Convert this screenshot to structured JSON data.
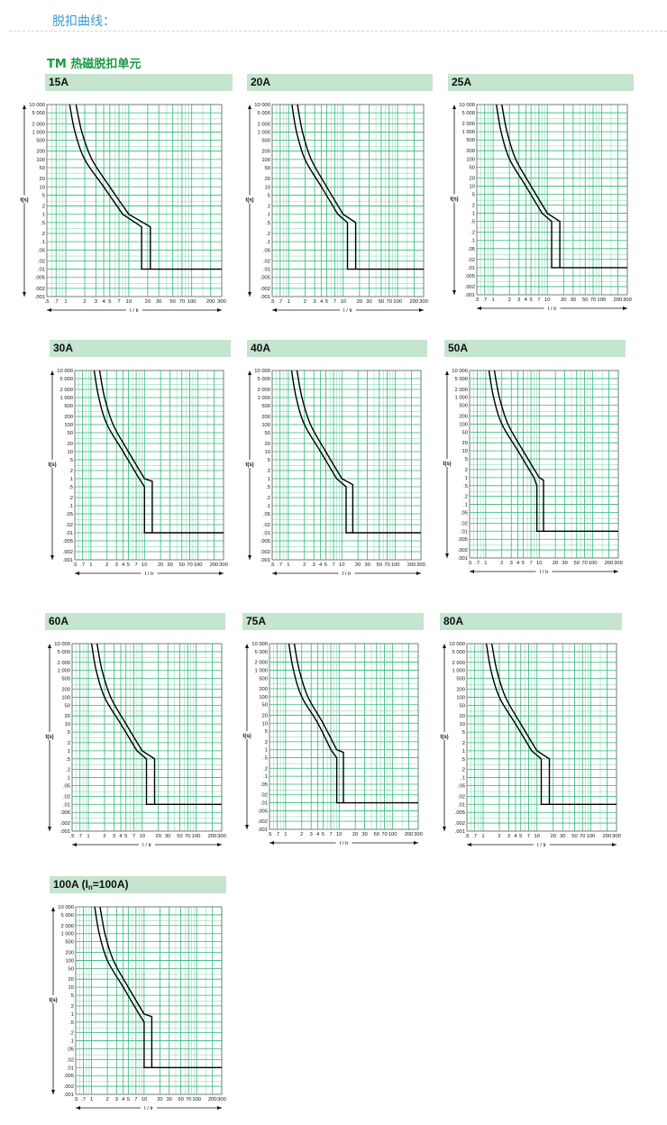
{
  "page": {
    "title": "脱扣曲线：",
    "section_title": "TM 热磁脱扣单元"
  },
  "chart_common": {
    "type": "line",
    "ylabel": "t(s)",
    "xlabel": "I / Ir",
    "x_tick_labels": [
      ".5",
      ".7",
      "1",
      "2",
      "3",
      "4",
      "5",
      "7",
      "10",
      "20",
      "30",
      "50",
      "70",
      "100",
      "200",
      "300"
    ],
    "y_tick_labels": [
      "10 000",
      "5 000",
      "2 000",
      "1 000",
      "500",
      "200",
      "100",
      "50",
      "20",
      "10",
      "5",
      "2",
      "1",
      ".5",
      ".2",
      ".1",
      ".05",
      ".02",
      ".01",
      ".005",
      ".002",
      ".001"
    ],
    "xlim": [
      0.5,
      300
    ],
    "ylim": [
      0.001,
      10000
    ],
    "x_scale": "log",
    "y_scale": "log",
    "grid": true,
    "grid_color": "#2fb87a",
    "curve_color": "#000000",
    "header_color": "#c5e5ce"
  },
  "chart_data": [
    {
      "title": "15A",
      "series": [
        {
          "values": [
            [
              1.15,
              10000
            ],
            [
              1.4,
              1000
            ],
            [
              2,
              100
            ],
            [
              4,
              10
            ],
            [
              8,
              1
            ],
            [
              16,
              0.35
            ],
            [
              16,
              0.01
            ],
            [
              300,
              0.01
            ]
          ]
        },
        {
          "values": [
            [
              1.45,
              10000
            ],
            [
              1.8,
              1000
            ],
            [
              2.6,
              100
            ],
            [
              5,
              10
            ],
            [
              10,
              1
            ],
            [
              22,
              0.35
            ],
            [
              22,
              0.01
            ]
          ]
        }
      ]
    },
    {
      "title": "20A",
      "series": [
        {
          "values": [
            [
              1.15,
              10000
            ],
            [
              1.4,
              1000
            ],
            [
              2,
              100
            ],
            [
              4,
              10
            ],
            [
              8,
              1
            ],
            [
              12,
              0.5
            ],
            [
              12,
              0.01
            ],
            [
              300,
              0.01
            ]
          ]
        },
        {
          "values": [
            [
              1.45,
              10000
            ],
            [
              1.8,
              1000
            ],
            [
              2.6,
              100
            ],
            [
              5,
              10
            ],
            [
              10,
              1
            ],
            [
              17,
              0.5
            ],
            [
              17,
              0.01
            ]
          ]
        }
      ]
    },
    {
      "title": "25A",
      "series": [
        {
          "values": [
            [
              1.15,
              10000
            ],
            [
              1.4,
              1000
            ],
            [
              2,
              100
            ],
            [
              4,
              10
            ],
            [
              8,
              1
            ],
            [
              12,
              0.5
            ],
            [
              12,
              0.01
            ],
            [
              300,
              0.01
            ]
          ]
        },
        {
          "values": [
            [
              1.45,
              10000
            ],
            [
              1.8,
              1000
            ],
            [
              2.6,
              100
            ],
            [
              5,
              10
            ],
            [
              10,
              1
            ],
            [
              17,
              0.5
            ],
            [
              17,
              0.01
            ]
          ]
        }
      ]
    },
    {
      "title": "30A",
      "series": [
        {
          "values": [
            [
              1.15,
              10000
            ],
            [
              1.4,
              1000
            ],
            [
              2,
              100
            ],
            [
              4,
              10
            ],
            [
              8,
              1
            ],
            [
              10,
              0.5
            ],
            [
              10,
              0.01
            ],
            [
              300,
              0.01
            ]
          ]
        },
        {
          "values": [
            [
              1.45,
              10000
            ],
            [
              1.8,
              1000
            ],
            [
              2.6,
              100
            ],
            [
              5,
              10
            ],
            [
              10,
              1
            ],
            [
              14,
              0.8
            ],
            [
              14,
              0.01
            ]
          ]
        }
      ]
    },
    {
      "title": "40A",
      "series": [
        {
          "values": [
            [
              1.15,
              10000
            ],
            [
              1.4,
              1000
            ],
            [
              2,
              100
            ],
            [
              4,
              10
            ],
            [
              8,
              1
            ],
            [
              12,
              0.5
            ],
            [
              12,
              0.01
            ],
            [
              300,
              0.01
            ]
          ]
        },
        {
          "values": [
            [
              1.45,
              10000
            ],
            [
              1.8,
              1000
            ],
            [
              2.6,
              100
            ],
            [
              5,
              10
            ],
            [
              10,
              1
            ],
            [
              16,
              0.6
            ],
            [
              16,
              0.01
            ]
          ]
        }
      ]
    },
    {
      "title": "50A",
      "series": [
        {
          "values": [
            [
              1.15,
              10000
            ],
            [
              1.4,
              1000
            ],
            [
              2,
              100
            ],
            [
              4,
              10
            ],
            [
              8,
              1
            ],
            [
              9,
              0.5
            ],
            [
              9,
              0.01
            ],
            [
              300,
              0.01
            ]
          ]
        },
        {
          "values": [
            [
              1.45,
              10000
            ],
            [
              1.8,
              1000
            ],
            [
              2.6,
              100
            ],
            [
              5,
              10
            ],
            [
              10,
              1
            ],
            [
              12,
              0.8
            ],
            [
              12,
              0.01
            ]
          ]
        }
      ]
    },
    {
      "title": "60A",
      "series": [
        {
          "values": [
            [
              1.15,
              10000
            ],
            [
              1.4,
              1000
            ],
            [
              2,
              100
            ],
            [
              4,
              10
            ],
            [
              8,
              1
            ],
            [
              12,
              0.5
            ],
            [
              12,
              0.01
            ],
            [
              300,
              0.01
            ]
          ]
        },
        {
          "values": [
            [
              1.45,
              10000
            ],
            [
              1.8,
              1000
            ],
            [
              2.6,
              100
            ],
            [
              5,
              10
            ],
            [
              10,
              1
            ],
            [
              17,
              0.5
            ],
            [
              17,
              0.01
            ]
          ]
        }
      ]
    },
    {
      "title": "75A",
      "series": [
        {
          "values": [
            [
              1.15,
              10000
            ],
            [
              1.4,
              1000
            ],
            [
              2,
              100
            ],
            [
              4,
              10
            ],
            [
              7,
              1
            ],
            [
              9,
              0.5
            ],
            [
              9,
              0.01
            ],
            [
              300,
              0.01
            ]
          ]
        },
        {
          "values": [
            [
              1.45,
              10000
            ],
            [
              1.8,
              1000
            ],
            [
              2.6,
              100
            ],
            [
              5,
              10
            ],
            [
              9,
              1
            ],
            [
              12,
              0.8
            ],
            [
              12,
              0.01
            ]
          ]
        }
      ]
    },
    {
      "title": "80A",
      "series": [
        {
          "values": [
            [
              1.15,
              10000
            ],
            [
              1.4,
              1000
            ],
            [
              2,
              100
            ],
            [
              4,
              10
            ],
            [
              8,
              1
            ],
            [
              12,
              0.5
            ],
            [
              12,
              0.01
            ],
            [
              300,
              0.01
            ]
          ]
        },
        {
          "values": [
            [
              1.45,
              10000
            ],
            [
              1.8,
              1000
            ],
            [
              2.6,
              100
            ],
            [
              5,
              10
            ],
            [
              10,
              1
            ],
            [
              17,
              0.5
            ],
            [
              17,
              0.01
            ]
          ]
        }
      ]
    },
    {
      "title": "100A (In=100A)",
      "title_main": "100A (I",
      "title_sub": "n",
      "title_end": "=100A)",
      "series": [
        {
          "values": [
            [
              1.15,
              10000
            ],
            [
              1.4,
              1000
            ],
            [
              2,
              100
            ],
            [
              4,
              10
            ],
            [
              8,
              1
            ],
            [
              10,
              0.5
            ],
            [
              10,
              0.01
            ],
            [
              300,
              0.01
            ]
          ]
        },
        {
          "values": [
            [
              1.45,
              10000
            ],
            [
              1.8,
              1000
            ],
            [
              2.6,
              100
            ],
            [
              5,
              10
            ],
            [
              10,
              1
            ],
            [
              14,
              0.8
            ],
            [
              14,
              0.01
            ]
          ]
        }
      ]
    }
  ]
}
